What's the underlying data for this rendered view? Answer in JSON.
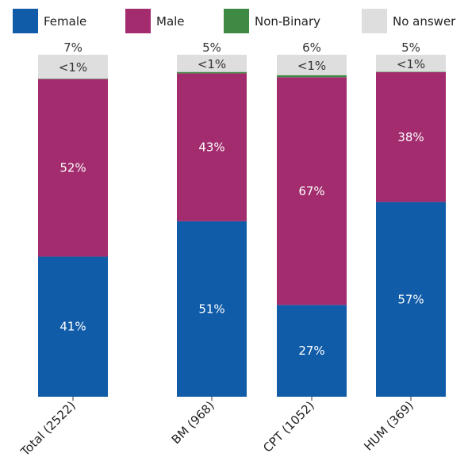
{
  "chart_data": {
    "type": "bar",
    "stacked": true,
    "normalized": true,
    "categories": [
      "Total (2522)",
      "BM (968)",
      "CPT (1052)",
      "HUM (369)"
    ],
    "series": [
      {
        "name": "Female",
        "color": "#115ca8",
        "values": [
          41,
          51,
          27,
          57
        ],
        "labels": [
          "41%",
          "51%",
          "27%",
          "57%"
        ]
      },
      {
        "name": "Male",
        "color": "#a22c6e",
        "values": [
          52,
          43,
          67,
          38
        ],
        "labels": [
          "52%",
          "43%",
          "67%",
          "38%"
        ]
      },
      {
        "name": "Non-Binary",
        "color": "#3f8a43",
        "values": [
          0.1,
          0.4,
          0.6,
          0.1
        ],
        "labels": [
          "",
          "",
          "",
          ""
        ]
      },
      {
        "name": "No answer",
        "color": "#dedede",
        "values": [
          7,
          5,
          6,
          5
        ],
        "labels": [
          "7%",
          "5%",
          "6%",
          "5%"
        ]
      }
    ],
    "small_labels": [
      "<1%",
      "<1%",
      "<1%",
      "<1%"
    ],
    "ylim": [
      0,
      100
    ],
    "grid": false,
    "legend_position": "top"
  }
}
